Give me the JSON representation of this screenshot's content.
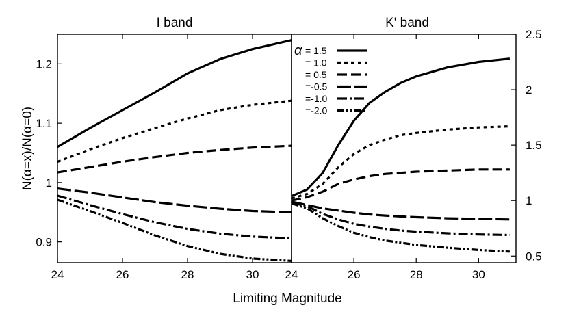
{
  "chart_data": {
    "type": "line",
    "xlabel": "Limiting Magnitude",
    "ylabel": "N(α=x)/N(α=0)",
    "legend": {
      "placement": "top-left of right panel",
      "symbol": "α",
      "labels": [
        "= 1.5",
        "= 1.0",
        "= 0.5",
        "=-0.5",
        "=-1.0",
        "=-2.0"
      ]
    },
    "panels": [
      {
        "title": "I band",
        "xlim": [
          24,
          31.2
        ],
        "ylim": [
          0.865,
          1.25
        ],
        "xticks": [
          24,
          26,
          28,
          30
        ],
        "xtick_labels": [
          "24",
          "26",
          "28",
          "30"
        ],
        "yticks": [
          0.9,
          1.0,
          1.1,
          1.2
        ],
        "ytick_labels": [
          "0.9",
          "1",
          "1.1",
          "1.2"
        ],
        "x": [
          24,
          25,
          26,
          27,
          28,
          29,
          30,
          31.2
        ],
        "series": [
          {
            "name": "1.5",
            "values": [
              1.06,
              1.092,
              1.122,
              1.152,
              1.184,
              1.208,
              1.225,
              1.24
            ]
          },
          {
            "name": "1.0",
            "values": [
              1.035,
              1.056,
              1.075,
              1.092,
              1.108,
              1.122,
              1.131,
              1.138
            ]
          },
          {
            "name": "0.5",
            "values": [
              1.017,
              1.026,
              1.035,
              1.043,
              1.05,
              1.055,
              1.059,
              1.062
            ]
          },
          {
            "name": "-0.5",
            "values": [
              0.99,
              0.983,
              0.975,
              0.967,
              0.961,
              0.956,
              0.952,
              0.95
            ]
          },
          {
            "name": "-1.0",
            "values": [
              0.978,
              0.962,
              0.947,
              0.933,
              0.922,
              0.914,
              0.909,
              0.906
            ]
          },
          {
            "name": "-2.0",
            "values": [
              0.971,
              0.952,
              0.932,
              0.911,
              0.893,
              0.88,
              0.872,
              0.868
            ]
          }
        ]
      },
      {
        "title": "K' band",
        "xlim": [
          24,
          31.2
        ],
        "ylim": [
          0.44,
          2.5
        ],
        "xticks": [
          24,
          26,
          28,
          30
        ],
        "xtick_labels": [
          "24",
          "26",
          "28",
          "30"
        ],
        "yticks": [
          0.5,
          1.0,
          1.5,
          2.0,
          2.5
        ],
        "ytick_labels": [
          "0.5",
          "1",
          "1.5",
          "2",
          "2.5"
        ],
        "x": [
          24,
          24.5,
          25,
          25.5,
          26,
          26.5,
          27,
          27.5,
          28,
          29,
          30,
          31
        ],
        "series": [
          {
            "name": "1.5",
            "values": [
              1.04,
              1.1,
              1.25,
              1.5,
              1.72,
              1.88,
              1.98,
              2.06,
              2.12,
              2.2,
              2.25,
              2.28
            ]
          },
          {
            "name": "1.0",
            "values": [
              1.02,
              1.06,
              1.15,
              1.3,
              1.42,
              1.5,
              1.55,
              1.59,
              1.61,
              1.64,
              1.66,
              1.67
            ]
          },
          {
            "name": "0.5",
            "values": [
              1.0,
              1.03,
              1.08,
              1.15,
              1.19,
              1.22,
              1.24,
              1.25,
              1.26,
              1.27,
              1.28,
              1.28
            ]
          },
          {
            "name": "-0.5",
            "values": [
              0.99,
              0.96,
              0.93,
              0.91,
              0.89,
              0.875,
              0.865,
              0.857,
              0.85,
              0.84,
              0.835,
              0.83
            ]
          },
          {
            "name": "-1.0",
            "values": [
              0.98,
              0.95,
              0.88,
              0.83,
              0.79,
              0.765,
              0.745,
              0.73,
              0.72,
              0.705,
              0.695,
              0.69
            ]
          },
          {
            "name": "-2.0",
            "values": [
              0.975,
              0.93,
              0.84,
              0.77,
              0.71,
              0.67,
              0.64,
              0.62,
              0.6,
              0.575,
              0.555,
              0.54
            ]
          }
        ]
      }
    ]
  }
}
